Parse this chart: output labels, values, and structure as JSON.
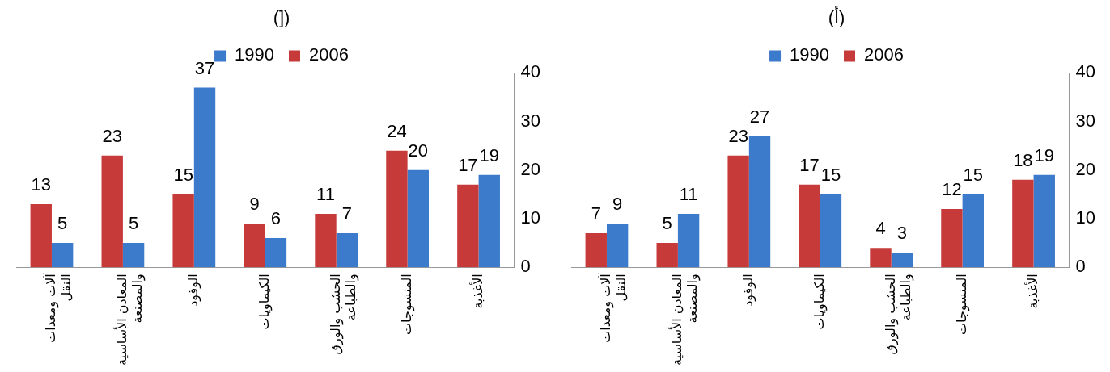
{
  "chart_data": [
    {
      "type": "bar",
      "title": "(])",
      "categories": [
        "آلات ومعدات النقل",
        "المعادن الأساسية والمصنعة",
        "الوقود",
        "الكيماويات",
        "الخشب والورق والطباعة",
        "المنسوجات",
        "الأغذية"
      ],
      "series": [
        {
          "name": "2006",
          "color": "#c63a3a",
          "values": [
            13,
            23,
            15,
            9,
            11,
            24,
            17
          ]
        },
        {
          "name": "1990",
          "color": "#3c7acb",
          "values": [
            5,
            5,
            37,
            6,
            7,
            20,
            19
          ]
        }
      ],
      "ylim": [
        0,
        40
      ],
      "yticks": [
        0,
        10,
        20,
        30,
        40
      ],
      "grid": false,
      "legend": "top",
      "data_labels": true
    },
    {
      "type": "bar",
      "title": "(أ)",
      "categories": [
        "آلات ومعدات النقل",
        "المعادن الأساسية والمصنعة",
        "الوقود",
        "الكيماويات",
        "الخشب والورق والطباعة",
        "المنسوجات",
        "الأغذية"
      ],
      "series": [
        {
          "name": "2006",
          "color": "#c63a3a",
          "values": [
            7,
            5,
            23,
            17,
            4,
            12,
            18
          ]
        },
        {
          "name": "1990",
          "color": "#3c7acb",
          "values": [
            9,
            11,
            27,
            15,
            3,
            15,
            19
          ]
        }
      ],
      "ylim": [
        0,
        40
      ],
      "yticks": [
        0,
        10,
        20,
        30,
        40
      ],
      "grid": false,
      "legend": "top",
      "data_labels": true
    }
  ]
}
